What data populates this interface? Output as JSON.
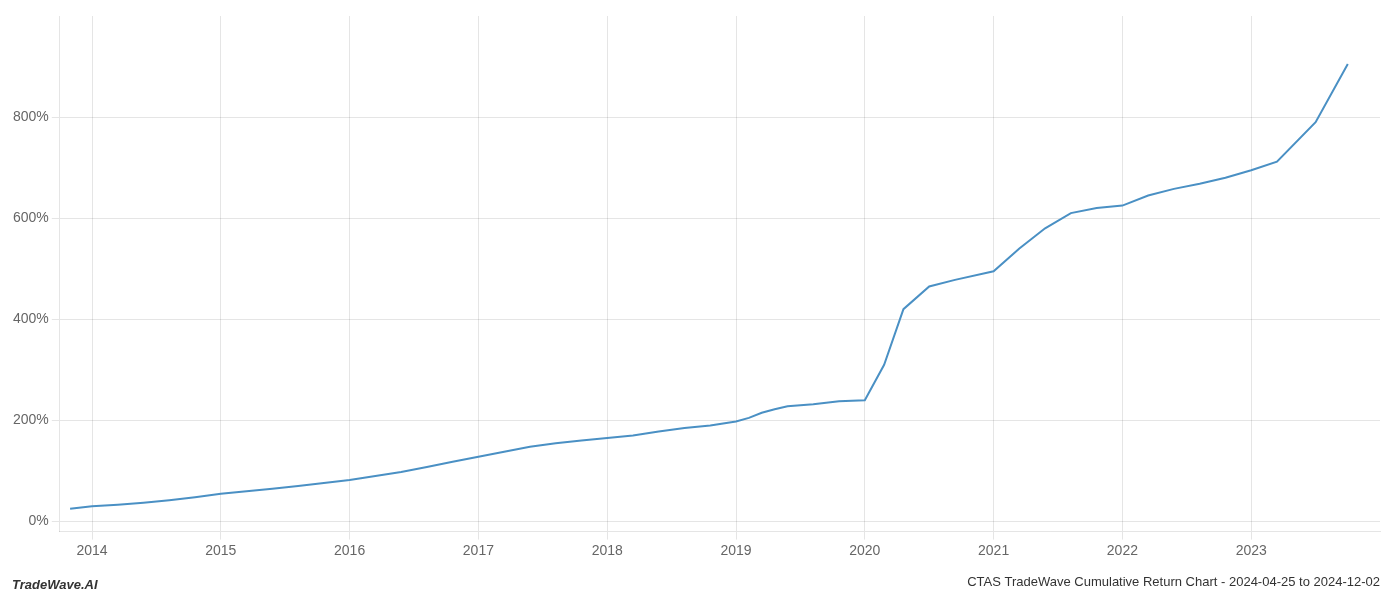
{
  "chart_data": {
    "type": "line",
    "title": "CTAS TradeWave Cumulative Return Chart - 2024-04-25 to 2024-12-02",
    "annotations": [
      "TradeWave.AI"
    ],
    "x": [
      2013.83,
      2014.0,
      2014.2,
      2014.4,
      2014.6,
      2014.8,
      2015.0,
      2015.2,
      2015.4,
      2015.6,
      2015.8,
      2016.0,
      2016.2,
      2016.4,
      2016.6,
      2016.8,
      2017.0,
      2017.2,
      2017.4,
      2017.6,
      2017.8,
      2018.0,
      2018.2,
      2018.4,
      2018.6,
      2018.8,
      2019.0,
      2019.1,
      2019.2,
      2019.3,
      2019.4,
      2019.6,
      2019.8,
      2020.0,
      2020.15,
      2020.3,
      2020.5,
      2020.7,
      2021.0,
      2021.2,
      2021.4,
      2021.6,
      2021.8,
      2022.0,
      2022.2,
      2022.4,
      2022.6,
      2022.8,
      2023.0,
      2023.2,
      2023.5,
      2023.75
    ],
    "values": [
      25,
      30,
      33,
      37,
      42,
      48,
      55,
      60,
      65,
      70,
      76,
      82,
      90,
      98,
      108,
      118,
      128,
      138,
      148,
      155,
      160,
      165,
      170,
      178,
      185,
      190,
      198,
      205,
      215,
      222,
      228,
      232,
      238,
      240,
      310,
      420,
      465,
      478,
      495,
      540,
      580,
      610,
      620,
      625,
      645,
      658,
      668,
      680,
      695,
      712,
      790,
      905
    ],
    "color": "#4a90c4",
    "xlim": [
      2013.75,
      2024.0
    ],
    "xticks": [
      2014,
      2015,
      2016,
      2017,
      2018,
      2019,
      2020,
      2021,
      2022,
      2023
    ],
    "ylim": [
      -20,
      1000
    ],
    "yticks": [
      {
        "value": 0,
        "label": "0%"
      },
      {
        "value": 200,
        "label": "200%"
      },
      {
        "value": 400,
        "label": "400%"
      },
      {
        "value": 600,
        "label": "600%"
      },
      {
        "value": 800,
        "label": "800%"
      }
    ],
    "grid": true
  }
}
